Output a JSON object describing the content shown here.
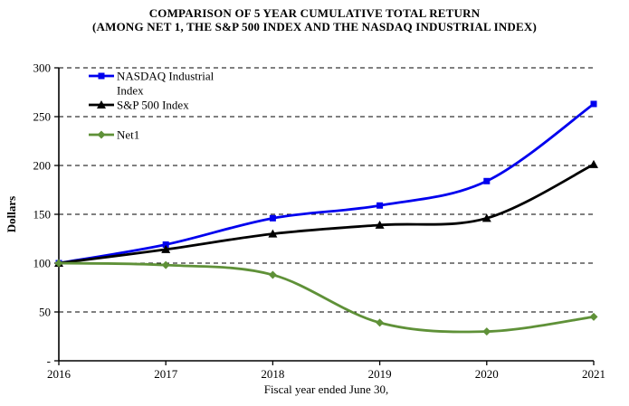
{
  "title": {
    "line1": "COMPARISON OF 5 YEAR CUMULATIVE TOTAL RETURN",
    "line2": "(AMONG NET 1, THE S&P 500 INDEX AND THE NASDAQ INDUSTRIAL INDEX)"
  },
  "chart_data": {
    "type": "line",
    "title": "COMPARISON OF 5 YEAR CUMULATIVE TOTAL RETURN (AMONG NET 1, THE S&P 500 INDEX AND THE NASDAQ INDUSTRIAL INDEX)",
    "x": [
      "2016",
      "2017",
      "2018",
      "2019",
      "2020",
      "2021"
    ],
    "series": [
      {
        "name": "NASDAQ Industrial Index",
        "legend_lines": [
          "NASDAQ Industrial",
          "Index"
        ],
        "color": "#0000ee",
        "marker": "square",
        "values": [
          100,
          119,
          146,
          159,
          184,
          263
        ]
      },
      {
        "name": "S&P 500 Index",
        "legend_lines": [
          "S&P 500 Index"
        ],
        "color": "#000000",
        "marker": "triangle",
        "values": [
          100,
          114,
          130,
          139,
          146,
          201
        ]
      },
      {
        "name": "Net1",
        "legend_lines": [
          "Net1"
        ],
        "color": "#5f9138",
        "marker": "diamond",
        "values": [
          100,
          98,
          88,
          39,
          30,
          45
        ]
      }
    ],
    "xlabel": "Fiscal year ended June 30,",
    "ylabel": "Dollars",
    "ylim": [
      0,
      300
    ],
    "ytick_step": 50,
    "ytick_labels_top_to_bottom": [
      "300",
      "250",
      "200",
      "150",
      "100",
      "50",
      "-"
    ],
    "grid": "horizontal dashed black lines at each 50",
    "legend_position": "inside top-left, no border, no background",
    "line_style": "smoothed"
  }
}
